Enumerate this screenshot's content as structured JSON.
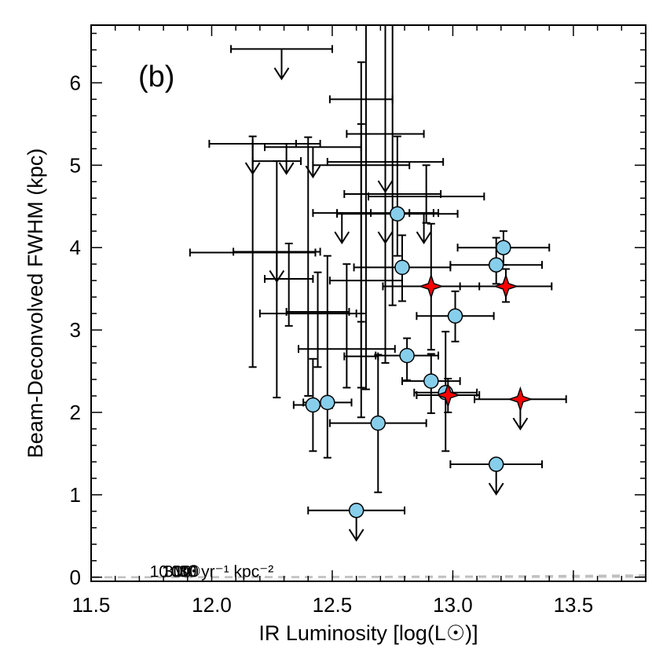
{
  "chart_data": {
    "type": "scatter",
    "panel_label": "(b)",
    "xlabel": "IR Luminosity [log(L☉)]",
    "ylabel": "Beam-Deconvolved FWHM (kpc)",
    "xlim": [
      11.5,
      13.8
    ],
    "ylim": [
      -0.05,
      6.7
    ],
    "x_ticks": [
      "11.5",
      "12.0",
      "12.5",
      "13.0",
      "13.5"
    ],
    "y_ticks": [
      "0",
      "1",
      "2",
      "3",
      "4",
      "5",
      "6"
    ],
    "grid": false,
    "curves": [
      {
        "label": "10 M☉yr⁻¹ kpc⁻²",
        "sigma": 10
      },
      {
        "label": "30",
        "sigma": 30
      },
      {
        "label": "100",
        "sigma": 100
      },
      {
        "label": "300",
        "sigma": 300
      },
      {
        "label": "1000",
        "sigma": 1000
      }
    ],
    "curve_color": "#c0c0c0",
    "circle_color": "#87ceeb",
    "star_color": "#ff0000",
    "circles": [
      {
        "x": 12.42,
        "y": 2.09,
        "xerr": 0.08,
        "ylo": 1.53,
        "yhi": 2.65,
        "upper": false
      },
      {
        "x": 12.48,
        "y": 2.12,
        "xerr": 0.1,
        "ylo": 1.45,
        "yhi": 3.9,
        "upper": false
      },
      {
        "x": 12.69,
        "y": 1.87,
        "xerr": 0.2,
        "ylo": 1.03,
        "yhi": 2.7,
        "upper": false
      },
      {
        "x": 12.6,
        "y": 0.81,
        "xerr": 0.2,
        "ylo": 0.81,
        "yhi": 0.81,
        "upper": true
      },
      {
        "x": 12.77,
        "y": 4.41,
        "xerr": 0.25,
        "ylo": 3.9,
        "yhi": 5.35,
        "upper": false
      },
      {
        "x": 12.79,
        "y": 3.76,
        "xerr": 0.2,
        "ylo": 3.35,
        "yhi": 4.15,
        "upper": false
      },
      {
        "x": 12.81,
        "y": 2.69,
        "xerr": 0.13,
        "ylo": 2.39,
        "yhi": 2.9,
        "upper": false
      },
      {
        "x": 12.91,
        "y": 2.38,
        "xerr": 0.12,
        "ylo": 1.99,
        "yhi": 2.71,
        "upper": false
      },
      {
        "x": 12.97,
        "y": 2.24,
        "xerr": 0.13,
        "ylo": 1.53,
        "yhi": 2.98,
        "upper": false
      },
      {
        "x": 13.01,
        "y": 3.17,
        "xerr": 0.16,
        "ylo": 2.86,
        "yhi": 3.47,
        "upper": false
      },
      {
        "x": 13.18,
        "y": 3.79,
        "xerr": 0.19,
        "ylo": 3.56,
        "yhi": 4.12,
        "upper": false
      },
      {
        "x": 13.21,
        "y": 4.0,
        "xerr": 0.19,
        "ylo": 3.79,
        "yhi": 4.2,
        "upper": false
      },
      {
        "x": 13.18,
        "y": 1.37,
        "xerr": 0.19,
        "ylo": 1.37,
        "yhi": 1.37,
        "upper": true
      }
    ],
    "stars": [
      {
        "x": 12.91,
        "y": 3.53,
        "xerr": 0.2,
        "ylo": 2.76,
        "yhi": 4.29,
        "upper": false
      },
      {
        "x": 13.22,
        "y": 3.53,
        "xerr": 0.19,
        "ylo": 3.34,
        "yhi": 3.74,
        "upper": false
      },
      {
        "x": 12.98,
        "y": 2.21,
        "xerr": 0.13,
        "ylo": 2.0,
        "yhi": 2.41,
        "upper": false
      },
      {
        "x": 13.28,
        "y": 2.16,
        "xerr": 0.19,
        "ylo": 2.16,
        "yhi": 2.16,
        "upper": true
      }
    ],
    "no_marker_points": [
      {
        "x": 12.29,
        "y": 6.41,
        "xerr": 0.21,
        "ylo": 6.41,
        "yhi": 6.41,
        "upper": true
      },
      {
        "x": 12.17,
        "y": 5.26,
        "xerr": 0.18,
        "ylo": 5.26,
        "yhi": 5.26,
        "upper": true
      },
      {
        "x": 12.31,
        "y": 5.26,
        "xerr": 0.14,
        "ylo": 5.26,
        "yhi": 5.26,
        "upper": true
      },
      {
        "x": 12.42,
        "y": 5.22,
        "xerr": 0.2,
        "ylo": 5.22,
        "yhi": 5.22,
        "upper": true
      },
      {
        "x": 12.72,
        "y": 5.04,
        "xerr": 0.24,
        "ylo": 5.04,
        "yhi": 5.04,
        "upper": true
      },
      {
        "x": 12.72,
        "y": 4.42,
        "xerr": 0.2,
        "ylo": 4.42,
        "yhi": 4.42,
        "upper": true
      },
      {
        "x": 12.54,
        "y": 4.42,
        "xerr": 0.12,
        "ylo": 4.42,
        "yhi": 4.42,
        "upper": true
      },
      {
        "x": 12.88,
        "y": 4.42,
        "xerr": 0.06,
        "ylo": 4.42,
        "yhi": 4.42,
        "upper": true
      },
      {
        "x": 12.27,
        "y": 3.95,
        "xerr": 0.18,
        "ylo": 3.95,
        "yhi": 3.95,
        "upper": true
      },
      {
        "x": 12.17,
        "y": 3.94,
        "xerr": 0.26,
        "ylo": 2.55,
        "yhi": 5.35,
        "upper": false
      },
      {
        "x": 12.27,
        "y": 5.05,
        "xerr": 0.1,
        "ylo": 2.18,
        "yhi": 5.05,
        "upper": false
      },
      {
        "x": 12.4,
        "y": 3.2,
        "xerr": 0.2,
        "ylo": 2.2,
        "yhi": 5.34,
        "upper": false
      },
      {
        "x": 12.62,
        "y": 5.8,
        "xerr": 0.13,
        "ylo": 1.94,
        "yhi": 6.25,
        "upper": false
      },
      {
        "x": 12.64,
        "y": 3.6,
        "xerr": 0.15,
        "ylo": 2.28,
        "yhi": 6.7,
        "upper": false
      },
      {
        "x": 12.72,
        "y": 5.38,
        "xerr": 0.16,
        "ylo": 2.6,
        "yhi": 6.7,
        "upper": false
      },
      {
        "x": 12.75,
        "y": 4.65,
        "xerr": 0.2,
        "ylo": 3.3,
        "yhi": 6.7,
        "upper": false
      },
      {
        "x": 12.56,
        "y": 2.77,
        "xerr": 0.2,
        "ylo": 2.3,
        "yhi": 3.8,
        "upper": false
      },
      {
        "x": 12.32,
        "y": 3.62,
        "xerr": 0.1,
        "ylo": 3.05,
        "yhi": 4.05,
        "upper": false
      },
      {
        "x": 12.44,
        "y": 3.22,
        "xerr": 0.13,
        "ylo": 2.55,
        "yhi": 3.7,
        "upper": false
      },
      {
        "x": 12.62,
        "y": 5.0,
        "xerr": 0.2,
        "ylo": 3.2,
        "yhi": 5.5,
        "upper": false
      },
      {
        "x": 12.62,
        "y": 2.68,
        "xerr": 0.07,
        "ylo": 2.3,
        "yhi": 3.1,
        "upper": false
      },
      {
        "x": 12.89,
        "y": 4.62,
        "xerr": 0.24,
        "ylo": 4.3,
        "yhi": 5.0,
        "upper": false
      }
    ]
  }
}
